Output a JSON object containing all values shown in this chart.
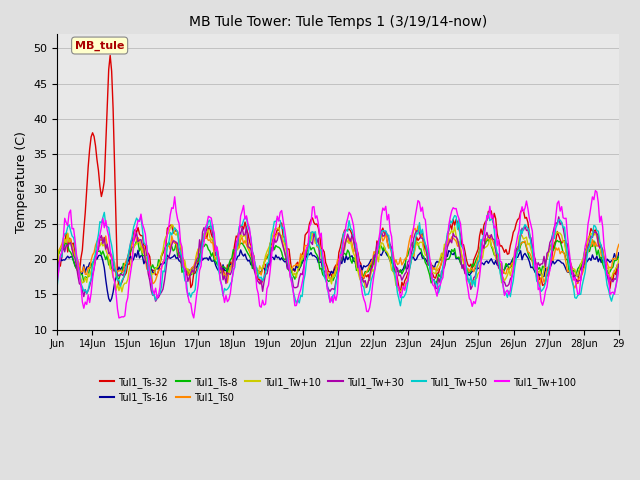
{
  "title": "MB Tule Tower: Tule Temps 1 (3/19/14-now)",
  "ylabel": "Temperature (C)",
  "ylim": [
    10,
    52
  ],
  "yticks": [
    10,
    15,
    20,
    25,
    30,
    35,
    40,
    45,
    50
  ],
  "fig_bg_color": "#e0e0e0",
  "plot_bg_color": "#e8e8e8",
  "annotation_text": "MB_tule",
  "series": [
    {
      "label": "Tul1_Ts-32",
      "color": "#dd0000",
      "lw": 1.0
    },
    {
      "label": "Tul1_Ts-16",
      "color": "#000099",
      "lw": 1.0
    },
    {
      "label": "Tul1_Ts-8",
      "color": "#00bb00",
      "lw": 1.0
    },
    {
      "label": "Tul1_Ts0",
      "color": "#ff8800",
      "lw": 1.0
    },
    {
      "label": "Tul1_Tw+10",
      "color": "#cccc00",
      "lw": 1.0
    },
    {
      "label": "Tul1_Tw+30",
      "color": "#aa00aa",
      "lw": 1.0
    },
    {
      "label": "Tul1_Tw+50",
      "color": "#00cccc",
      "lw": 1.0
    },
    {
      "label": "Tul1_Tw+100",
      "color": "#ff00ff",
      "lw": 1.0
    }
  ],
  "xtick_labels": [
    "Jun",
    "14Jun",
    "15Jun",
    "16Jun",
    "17Jun",
    "18Jun",
    "19Jun",
    "20Jun",
    "21Jun",
    "22Jun",
    "23Jun",
    "24Jun",
    "25Jun",
    "26Jun",
    "27Jun",
    "28Jun",
    "29"
  ],
  "n_days": 16,
  "seed": 42
}
